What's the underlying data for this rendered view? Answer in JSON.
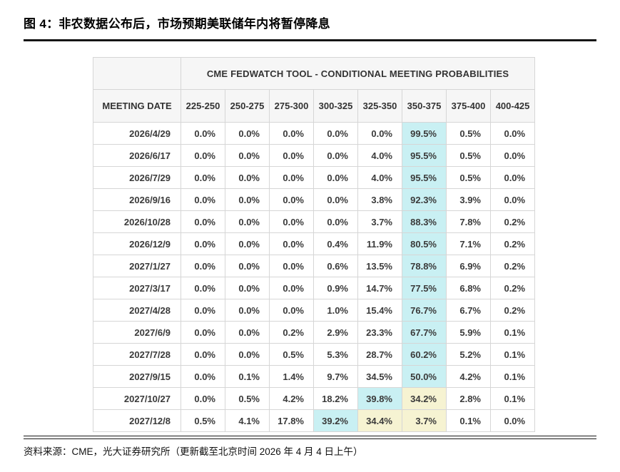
{
  "title": "图 4：非农数据公布后，市场预期美联储年内将暂停降息",
  "source": "资料来源：CME，光大证券研究所（更新截至北京时间 2026 年 4 月 4 日上午）",
  "colors": {
    "highlight_cyan": "#c9f0f3",
    "highlight_yellow": "#f6f3d2",
    "header_bg": "#f6f6f6",
    "border": "#d6d6d6",
    "text": "#3a3a3a"
  },
  "table": {
    "banner": "CME FEDWATCH TOOL - CONDITIONAL MEETING PROBABILITIES",
    "date_col_header": "MEETING DATE",
    "rate_columns": [
      "225-250",
      "250-275",
      "275-300",
      "300-325",
      "325-350",
      "350-375",
      "375-400",
      "400-425"
    ],
    "rows": [
      {
        "date": "2026/4/29",
        "values": [
          "0.0%",
          "0.0%",
          "0.0%",
          "0.0%",
          "0.0%",
          "99.5%",
          "0.5%",
          "0.0%"
        ],
        "cyan": [
          5
        ],
        "yellow": []
      },
      {
        "date": "2026/6/17",
        "values": [
          "0.0%",
          "0.0%",
          "0.0%",
          "0.0%",
          "4.0%",
          "95.5%",
          "0.5%",
          "0.0%"
        ],
        "cyan": [
          5
        ],
        "yellow": []
      },
      {
        "date": "2026/7/29",
        "values": [
          "0.0%",
          "0.0%",
          "0.0%",
          "0.0%",
          "4.0%",
          "95.5%",
          "0.5%",
          "0.0%"
        ],
        "cyan": [
          5
        ],
        "yellow": []
      },
      {
        "date": "2026/9/16",
        "values": [
          "0.0%",
          "0.0%",
          "0.0%",
          "0.0%",
          "3.8%",
          "92.3%",
          "3.9%",
          "0.0%"
        ],
        "cyan": [
          5
        ],
        "yellow": []
      },
      {
        "date": "2026/10/28",
        "values": [
          "0.0%",
          "0.0%",
          "0.0%",
          "0.0%",
          "3.7%",
          "88.3%",
          "7.8%",
          "0.2%"
        ],
        "cyan": [
          5
        ],
        "yellow": []
      },
      {
        "date": "2026/12/9",
        "values": [
          "0.0%",
          "0.0%",
          "0.0%",
          "0.4%",
          "11.9%",
          "80.5%",
          "7.1%",
          "0.2%"
        ],
        "cyan": [
          5
        ],
        "yellow": []
      },
      {
        "date": "2027/1/27",
        "values": [
          "0.0%",
          "0.0%",
          "0.0%",
          "0.6%",
          "13.5%",
          "78.8%",
          "6.9%",
          "0.2%"
        ],
        "cyan": [
          5
        ],
        "yellow": []
      },
      {
        "date": "2027/3/17",
        "values": [
          "0.0%",
          "0.0%",
          "0.0%",
          "0.9%",
          "14.7%",
          "77.5%",
          "6.8%",
          "0.2%"
        ],
        "cyan": [
          5
        ],
        "yellow": []
      },
      {
        "date": "2027/4/28",
        "values": [
          "0.0%",
          "0.0%",
          "0.0%",
          "1.0%",
          "15.4%",
          "76.7%",
          "6.7%",
          "0.2%"
        ],
        "cyan": [
          5
        ],
        "yellow": []
      },
      {
        "date": "2027/6/9",
        "values": [
          "0.0%",
          "0.0%",
          "0.2%",
          "2.9%",
          "23.3%",
          "67.7%",
          "5.9%",
          "0.1%"
        ],
        "cyan": [
          5
        ],
        "yellow": []
      },
      {
        "date": "2027/7/28",
        "values": [
          "0.0%",
          "0.0%",
          "0.5%",
          "5.3%",
          "28.7%",
          "60.2%",
          "5.2%",
          "0.1%"
        ],
        "cyan": [
          5
        ],
        "yellow": []
      },
      {
        "date": "2027/9/15",
        "values": [
          "0.0%",
          "0.1%",
          "1.4%",
          "9.7%",
          "34.5%",
          "50.0%",
          "4.2%",
          "0.1%"
        ],
        "cyan": [
          5
        ],
        "yellow": []
      },
      {
        "date": "2027/10/27",
        "values": [
          "0.0%",
          "0.5%",
          "4.2%",
          "18.2%",
          "39.8%",
          "34.2%",
          "2.8%",
          "0.1%"
        ],
        "cyan": [
          4
        ],
        "yellow": [
          5
        ]
      },
      {
        "date": "2027/12/8",
        "values": [
          "0.5%",
          "4.1%",
          "17.8%",
          "39.2%",
          "34.4%",
          "3.7%",
          "0.1%",
          "0.0%"
        ],
        "cyan": [
          3
        ],
        "yellow": [
          4,
          5
        ]
      }
    ]
  }
}
